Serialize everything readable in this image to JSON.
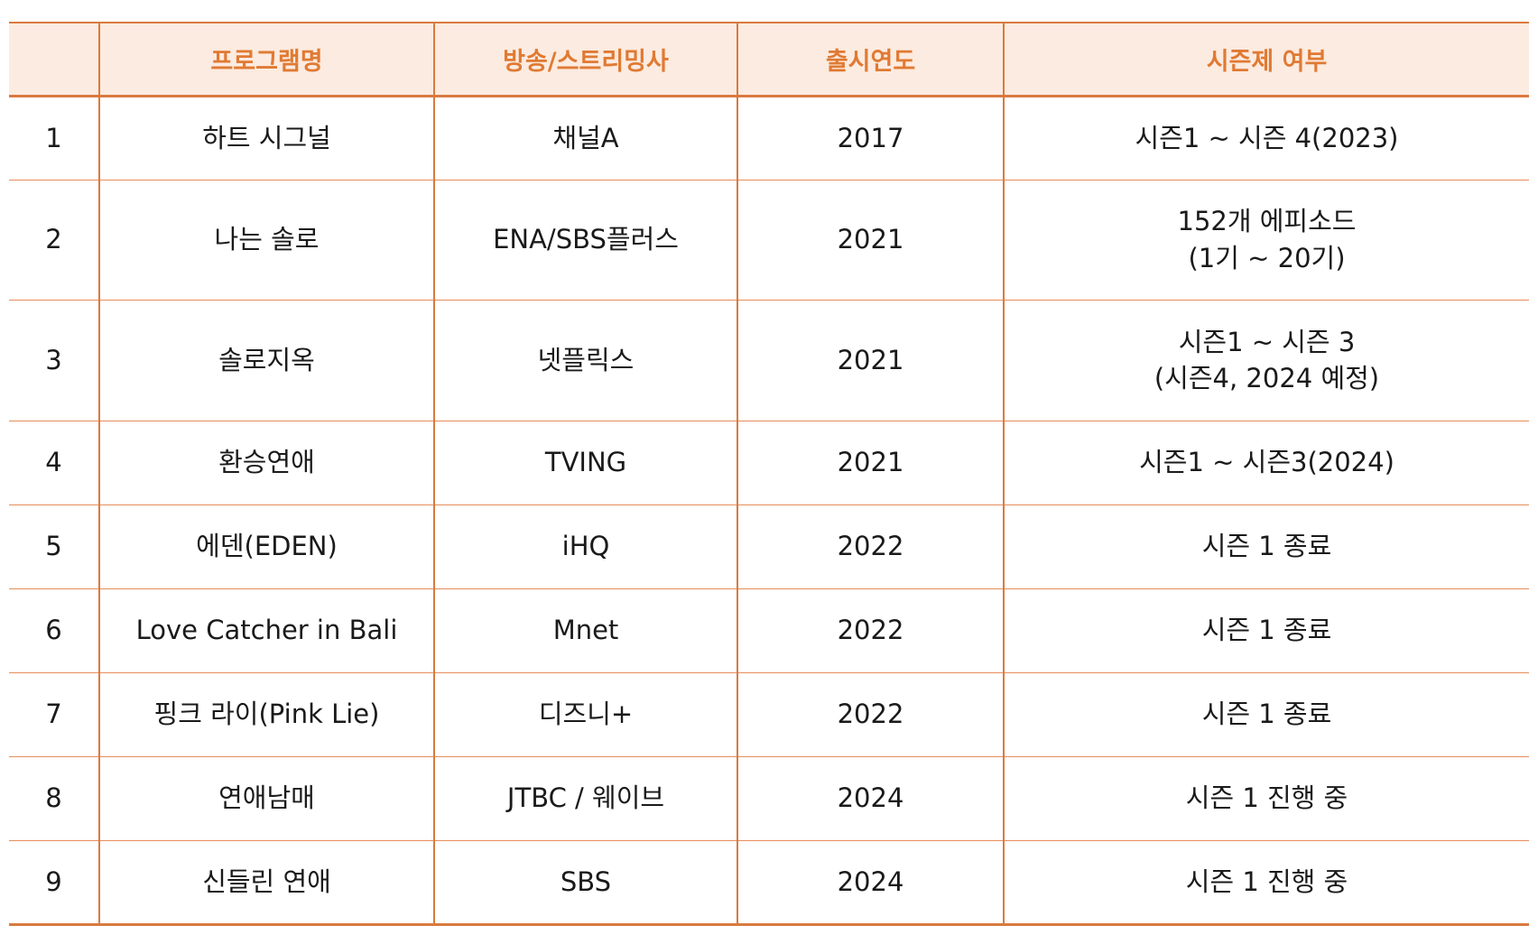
{
  "table": {
    "headers": [
      "",
      "프로그램명",
      "방송/스트리밍사",
      "출시연도",
      "시즌제 여부"
    ],
    "rows": [
      {
        "no": "1",
        "program": "하트 시그널",
        "network": "채널A",
        "year": "2017",
        "season": [
          "시즌1  ~ 시즌 4(2023)"
        ]
      },
      {
        "no": "2",
        "program": "나는 솔로",
        "network": "ENA/SBS플러스",
        "year": "2021",
        "season": [
          "152개 에피소드",
          "(1기  ~ 20기)"
        ]
      },
      {
        "no": "3",
        "program": "솔로지옥",
        "network": "넷플릭스",
        "year": "2021",
        "season": [
          "시즌1  ~ 시즌 3",
          "(시즌4, 2024 예정)"
        ]
      },
      {
        "no": "4",
        "program": "환승연애",
        "network": "TVING",
        "year": "2021",
        "season": [
          "시즌1  ~ 시즌3(2024)"
        ]
      },
      {
        "no": "5",
        "program": "에덴(EDEN)",
        "network": "iHQ",
        "year": "2022",
        "season": [
          "시즌 1 종료"
        ]
      },
      {
        "no": "6",
        "program": "Love Catcher in Bali",
        "network": "Mnet",
        "year": "2022",
        "season": [
          "시즌 1 종료"
        ]
      },
      {
        "no": "7",
        "program": "핑크 라이(Pink Lie)",
        "network": "디즈니+",
        "year": "2022",
        "season": [
          "시즌 1 종료"
        ]
      },
      {
        "no": "8",
        "program": "연애남매",
        "network": "JTBC  / 웨이브",
        "year": "2024",
        "season": [
          "시즌  1 진행 중"
        ]
      },
      {
        "no": "9",
        "program": "신들린 연애",
        "network": "SBS",
        "year": "2024",
        "season": [
          "시즌  1 진행 중"
        ]
      }
    ]
  },
  "colors": {
    "header_text": "#e07a33",
    "header_bg": "#fcebe0",
    "border": "#d97a3f"
  }
}
